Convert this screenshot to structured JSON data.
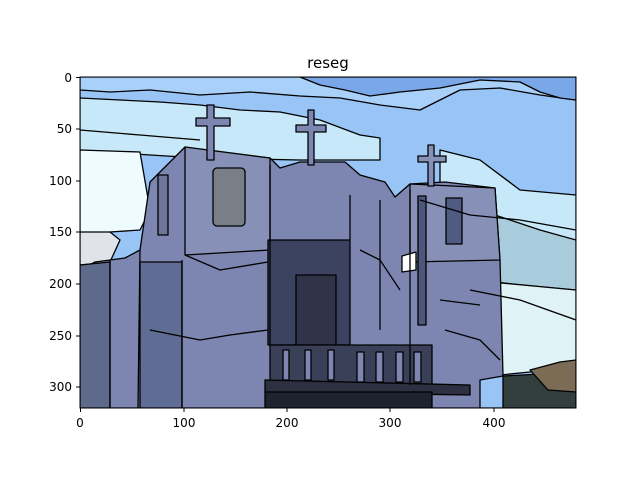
{
  "figure": {
    "title": "reseg",
    "x_ticks": [
      "0",
      "100",
      "200",
      "300",
      "400"
    ],
    "y_ticks": [
      "0",
      "50",
      "100",
      "150",
      "200",
      "250",
      "300"
    ]
  },
  "image": {
    "description_colors": {
      "sky_dark": "#7aa7e8",
      "sky_mid": "#98c4f6",
      "sky_light": "#c6e8f8",
      "sky_pale": "#eefcff",
      "building": "#7c86b0",
      "building_light": "#8791b8",
      "building_shadow": "#5f6d95",
      "window_dark": "#2f3448",
      "ground_dark": "#323f3c",
      "ground_brown": "#7c6c56",
      "outline": "#000000"
    }
  }
}
